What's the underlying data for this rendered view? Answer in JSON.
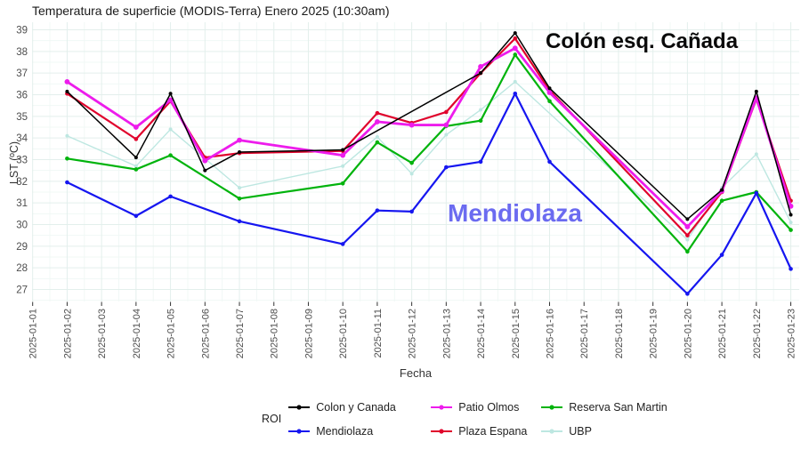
{
  "title": "Temperatura de superficie (MODIS-Terra) Enero 2025 (10:30am)",
  "axes": {
    "x_label": "Fecha",
    "y_label": "LST (ºC)"
  },
  "annotations": {
    "colon": {
      "text": "Colón esq. Cañada",
      "color": "#0a0a0a"
    },
    "mendiolaza": {
      "text": "Mendiolaza",
      "color": "#6B6BF0"
    }
  },
  "legend": {
    "title": "ROI",
    "entries": [
      {
        "name": "Colon y Canada",
        "color": "#000000"
      },
      {
        "name": "Mendiolaza",
        "color": "#1616F0"
      },
      {
        "name": "Patio Olmos",
        "color": "#ED1CEC"
      },
      {
        "name": "Plaza Espana",
        "color": "#E0032C"
      },
      {
        "name": "Reserva San Martin",
        "color": "#00B30C"
      },
      {
        "name": "UBP",
        "color": "#BDE7E1"
      }
    ]
  },
  "chart_data": {
    "type": "line",
    "title": "Temperatura de superficie (MODIS-Terra) Enero 2025 (10:30am)",
    "xlabel": "Fecha",
    "ylabel": "LST (ºC)",
    "ylim": [
      27,
      39
    ],
    "grid": true,
    "legend_title": "ROI",
    "legend_position": "bottom",
    "x_categories": [
      "2025-01-01",
      "2025-01-02",
      "2025-01-03",
      "2025-01-04",
      "2025-01-05",
      "2025-01-06",
      "2025-01-07",
      "2025-01-08",
      "2025-01-09",
      "2025-01-10",
      "2025-01-11",
      "2025-01-12",
      "2025-01-13",
      "2025-01-14",
      "2025-01-15",
      "2025-01-16",
      "2025-01-17",
      "2025-01-18",
      "2025-01-19",
      "2025-01-20",
      "2025-01-21",
      "2025-01-22",
      "2025-01-23"
    ],
    "note": "points are [day_of_january, LST_degC]; days without a pair have no observation",
    "series": [
      {
        "name": "Colon y Canada",
        "color": "#000000",
        "points": [
          [
            2,
            36.15
          ],
          [
            4,
            33.1
          ],
          [
            5,
            36.05
          ],
          [
            6,
            32.5
          ],
          [
            7,
            33.35
          ],
          [
            10,
            33.45
          ],
          [
            14,
            37.0
          ],
          [
            15,
            38.85
          ],
          [
            16,
            36.3
          ],
          [
            20,
            30.25
          ],
          [
            21,
            31.6
          ],
          [
            22,
            36.15
          ],
          [
            23,
            30.45
          ]
        ]
      },
      {
        "name": "Mendiolaza",
        "color": "#1616F0",
        "points": [
          [
            2,
            31.95
          ],
          [
            4,
            30.4
          ],
          [
            5,
            31.3
          ],
          [
            7,
            30.15
          ],
          [
            10,
            29.1
          ],
          [
            11,
            30.65
          ],
          [
            12,
            30.6
          ],
          [
            13,
            32.65
          ],
          [
            14,
            32.9
          ],
          [
            15,
            36.05
          ],
          [
            16,
            32.9
          ],
          [
            20,
            26.8
          ],
          [
            21,
            28.6
          ],
          [
            22,
            31.45
          ],
          [
            23,
            27.95
          ]
        ]
      },
      {
        "name": "Patio Olmos",
        "color": "#ED1CEC",
        "points": [
          [
            2,
            36.6
          ],
          [
            4,
            34.5
          ],
          [
            5,
            35.75
          ],
          [
            6,
            32.95
          ],
          [
            7,
            33.9
          ],
          [
            10,
            33.2
          ],
          [
            11,
            34.75
          ],
          [
            12,
            34.6
          ],
          [
            13,
            34.6
          ],
          [
            14,
            37.3
          ],
          [
            15,
            38.15
          ],
          [
            16,
            36.1
          ],
          [
            20,
            29.9
          ],
          [
            21,
            31.55
          ],
          [
            22,
            35.85
          ],
          [
            23,
            30.85
          ]
        ]
      },
      {
        "name": "Plaza Espana",
        "color": "#E0032C",
        "points": [
          [
            2,
            36.05
          ],
          [
            4,
            33.95
          ],
          [
            5,
            35.7
          ],
          [
            6,
            33.1
          ],
          [
            7,
            33.3
          ],
          [
            10,
            33.4
          ],
          [
            11,
            35.15
          ],
          [
            12,
            34.7
          ],
          [
            13,
            35.2
          ],
          [
            14,
            37.0
          ],
          [
            15,
            38.6
          ],
          [
            16,
            36.2
          ],
          [
            20,
            29.5
          ],
          [
            21,
            31.5
          ],
          [
            22,
            35.8
          ],
          [
            23,
            31.1
          ]
        ]
      },
      {
        "name": "Reserva San Martin",
        "color": "#00B30C",
        "points": [
          [
            2,
            33.05
          ],
          [
            4,
            32.55
          ],
          [
            5,
            33.2
          ],
          [
            7,
            31.2
          ],
          [
            10,
            31.9
          ],
          [
            11,
            33.8
          ],
          [
            12,
            32.85
          ],
          [
            13,
            34.55
          ],
          [
            14,
            34.8
          ],
          [
            15,
            37.85
          ],
          [
            16,
            35.7
          ],
          [
            20,
            28.75
          ],
          [
            21,
            31.1
          ],
          [
            22,
            31.5
          ],
          [
            23,
            29.75
          ]
        ]
      },
      {
        "name": "UBP",
        "color": "#BDE7E1",
        "points": [
          [
            2,
            34.1
          ],
          [
            4,
            32.7
          ],
          [
            5,
            34.4
          ],
          [
            7,
            31.7
          ],
          [
            10,
            32.7
          ],
          [
            11,
            34.05
          ],
          [
            12,
            32.35
          ],
          [
            13,
            34.15
          ],
          [
            14,
            35.3
          ],
          [
            15,
            36.6
          ],
          [
            20,
            29.3
          ],
          [
            21,
            31.7
          ],
          [
            22,
            33.25
          ],
          [
            23,
            30.1
          ]
        ]
      }
    ]
  }
}
